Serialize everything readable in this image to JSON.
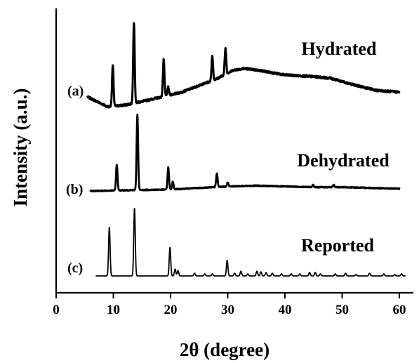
{
  "chart_data": {
    "type": "line",
    "xlabel": "2θ (degree)",
    "ylabel": "Intensity (a.u.)",
    "xlim": [
      0,
      63
    ],
    "xticks": [
      0,
      10,
      20,
      30,
      40,
      50,
      60
    ],
    "yticks_shown": false,
    "grid": false,
    "series": [
      {
        "tag": "(a)",
        "name": "Hydrated",
        "x_range": [
          5.5,
          60
        ],
        "baseline": [
          [
            5.5,
            0.12
          ],
          [
            9,
            0.0
          ],
          [
            12,
            0.02
          ],
          [
            16,
            0.08
          ],
          [
            22,
            0.18
          ],
          [
            28,
            0.34
          ],
          [
            31,
            0.45
          ],
          [
            33,
            0.47
          ],
          [
            36,
            0.44
          ],
          [
            40,
            0.39
          ],
          [
            45,
            0.37
          ],
          [
            48,
            0.35
          ],
          [
            52,
            0.27
          ],
          [
            56,
            0.2
          ],
          [
            60,
            0.18
          ]
        ],
        "peaks": [
          [
            9.9,
            0.5
          ],
          [
            13.6,
            1.0
          ],
          [
            18.8,
            0.46
          ],
          [
            19.6,
            0.1
          ],
          [
            27.3,
            0.3
          ],
          [
            29.6,
            0.32
          ]
        ],
        "noise": 0.025
      },
      {
        "tag": "(b)",
        "name": "Dehydrated",
        "x_range": [
          6,
          60
        ],
        "baseline": [
          [
            6,
            0.0
          ],
          [
            20,
            0.02
          ],
          [
            30,
            0.06
          ],
          [
            35,
            0.07
          ],
          [
            45,
            0.05
          ],
          [
            50,
            0.05
          ],
          [
            60,
            0.03
          ]
        ],
        "peaks": [
          [
            10.6,
            0.34
          ],
          [
            14.2,
            1.0
          ],
          [
            19.6,
            0.29
          ],
          [
            20.4,
            0.1
          ],
          [
            28.1,
            0.18
          ],
          [
            30.0,
            0.05
          ],
          [
            44.9,
            0.03
          ],
          [
            48.5,
            0.03
          ]
        ],
        "noise": 0.012
      },
      {
        "tag": "(c)",
        "name": "Reported",
        "x_range": [
          7,
          61
        ],
        "baseline": [
          [
            7,
            0.0
          ],
          [
            61,
            0.0
          ]
        ],
        "peaks": [
          [
            9.3,
            0.72
          ],
          [
            13.7,
            1.0
          ],
          [
            19.9,
            0.42
          ],
          [
            20.8,
            0.1
          ],
          [
            21.3,
            0.08
          ],
          [
            24.2,
            0.04
          ],
          [
            26.0,
            0.03
          ],
          [
            27.3,
            0.03
          ],
          [
            29.9,
            0.23
          ],
          [
            31.2,
            0.04
          ],
          [
            32.3,
            0.07
          ],
          [
            33.5,
            0.03
          ],
          [
            35.1,
            0.07
          ],
          [
            35.8,
            0.06
          ],
          [
            36.7,
            0.05
          ],
          [
            37.8,
            0.04
          ],
          [
            39.4,
            0.03
          ],
          [
            41.1,
            0.03
          ],
          [
            42.6,
            0.03
          ],
          [
            44.3,
            0.05
          ],
          [
            45.3,
            0.05
          ],
          [
            46.2,
            0.03
          ],
          [
            48.8,
            0.03
          ],
          [
            50.6,
            0.04
          ],
          [
            52.4,
            0.02
          ],
          [
            54.8,
            0.04
          ],
          [
            57.3,
            0.03
          ],
          [
            59.2,
            0.02
          ],
          [
            60.4,
            0.03
          ]
        ],
        "noise": 0.0
      }
    ]
  }
}
